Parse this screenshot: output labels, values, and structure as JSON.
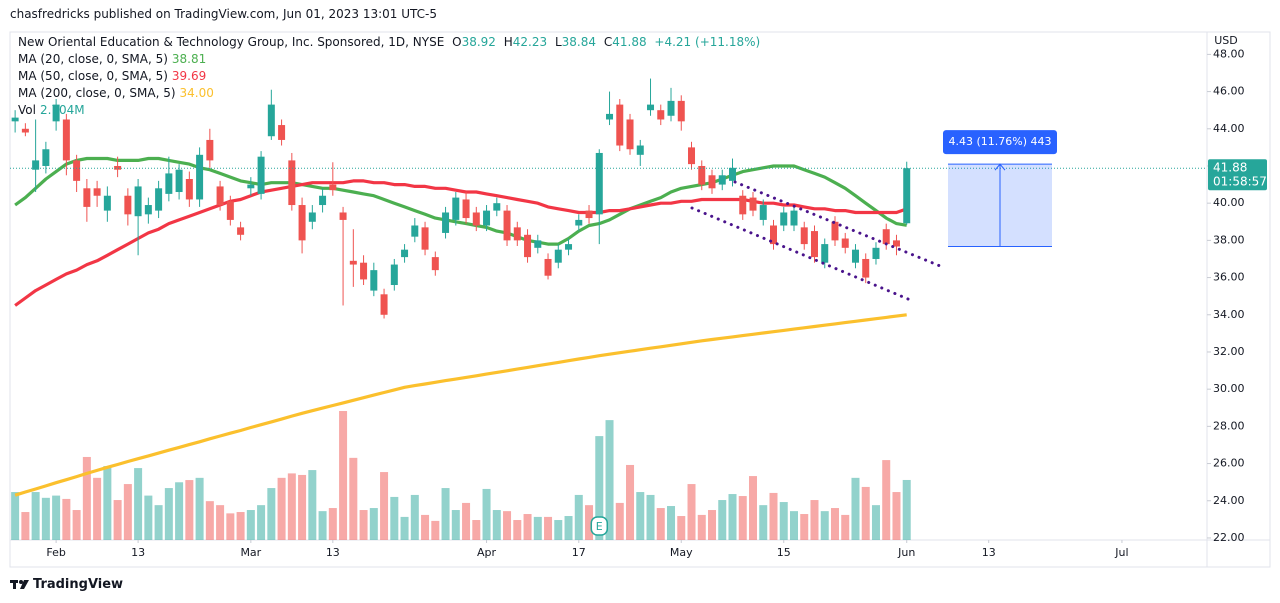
{
  "header": "chasfredricks published on TradingView.com, Jun 01, 2023 13:01 UTC-5",
  "footer": "TradingView",
  "chart_data": {
    "type": "candlestick",
    "title": "New Oriental Education & Technology Group, Inc. Sponsored, 1D, NYSE",
    "ohlc_letters": [
      "O",
      "H",
      "L",
      "C"
    ],
    "change_label": "+4.21 (+11.18%)",
    "currency": "USD",
    "countdown": "01:58:57",
    "up_color": "#26a69a",
    "down_color": "#ef5350",
    "open": [
      44.4,
      44.0,
      41.8,
      42.0,
      44.4,
      44.5,
      42.3,
      40.8,
      40.8,
      39.6,
      42.0,
      40.4,
      39.3,
      39.4,
      39.6,
      40.5,
      40.6,
      41.3,
      40.2,
      43.4,
      40.9,
      40.1,
      38.7,
      40.8,
      40.5,
      43.6,
      44.2,
      42.3,
      39.9,
      39.0,
      39.9,
      41.0,
      39.5,
      36.9,
      36.8,
      35.3,
      35.1,
      35.6,
      37.1,
      38.2,
      38.7,
      37.1,
      38.4,
      39.1,
      40.2,
      39.5,
      38.8,
      39.6,
      39.6,
      38.7,
      38.3,
      37.6,
      37.0,
      36.8,
      37.5,
      38.8,
      39.6,
      39.4,
      44.5,
      45.3,
      44.5,
      42.6,
      45.0,
      45.0,
      44.7,
      45.5,
      43.0,
      42.0,
      41.5,
      41.0,
      41.2,
      40.4,
      40.3,
      39.1,
      38.8,
      38.8,
      38.8,
      38.7,
      38.5,
      36.8,
      39.0,
      38.1,
      36.8,
      37.0,
      37.0,
      38.6,
      38.0,
      38.92
    ],
    "high": [
      45.0,
      44.3,
      44.5,
      43.3,
      45.6,
      44.8,
      42.6,
      41.3,
      41.2,
      40.9,
      42.5,
      40.8,
      41.3,
      40.3,
      41.2,
      42.5,
      42.1,
      41.7,
      43.0,
      44.0,
      41.2,
      40.4,
      39.0,
      41.4,
      42.8,
      46.1,
      44.5,
      42.7,
      40.3,
      39.9,
      40.8,
      42.2,
      39.8,
      38.6,
      37.2,
      36.8,
      35.4,
      37.0,
      37.8,
      39.2,
      39.0,
      37.4,
      39.8,
      40.6,
      40.6,
      39.8,
      39.9,
      40.3,
      39.9,
      39.0,
      38.6,
      38.3,
      37.3,
      37.8,
      38.1,
      39.4,
      39.9,
      42.9,
      46.0,
      45.6,
      44.8,
      43.4,
      46.7,
      45.3,
      46.2,
      45.8,
      43.3,
      42.3,
      41.8,
      41.8,
      42.4,
      40.7,
      40.6,
      40.2,
      39.1,
      39.8,
      39.9,
      39.0,
      38.8,
      38.1,
      39.3,
      38.4,
      37.8,
      37.3,
      37.9,
      38.9,
      38.3,
      42.23
    ],
    "low": [
      43.8,
      43.6,
      40.6,
      41.6,
      43.9,
      41.5,
      40.6,
      39.0,
      39.8,
      39.0,
      41.4,
      38.8,
      37.2,
      38.9,
      39.2,
      40.1,
      40.2,
      39.8,
      39.8,
      41.9,
      39.6,
      38.8,
      38.0,
      40.4,
      40.2,
      43.4,
      43.1,
      39.6,
      37.3,
      38.6,
      39.5,
      40.4,
      34.5,
      35.5,
      35.6,
      35.0,
      33.8,
      35.3,
      36.8,
      37.9,
      37.2,
      36.1,
      38.1,
      38.8,
      38.9,
      38.5,
      38.5,
      39.3,
      37.7,
      37.7,
      36.8,
      37.3,
      35.9,
      36.5,
      37.2,
      38.5,
      38.9,
      37.8,
      44.2,
      42.8,
      42.6,
      42.0,
      44.7,
      44.2,
      44.4,
      43.9,
      41.8,
      40.7,
      40.5,
      40.7,
      40.9,
      39.1,
      39.3,
      38.8,
      37.5,
      38.5,
      38.5,
      37.5,
      36.8,
      36.5,
      37.7,
      37.3,
      36.5,
      35.7,
      36.7,
      37.5,
      37.2,
      38.84
    ],
    "close": [
      44.6,
      43.8,
      42.3,
      42.9,
      45.3,
      42.3,
      41.2,
      39.8,
      40.4,
      40.4,
      41.8,
      39.4,
      40.9,
      39.9,
      40.8,
      41.6,
      41.8,
      40.2,
      42.6,
      42.3,
      39.9,
      39.1,
      38.3,
      41.0,
      42.5,
      45.3,
      43.4,
      39.9,
      38.0,
      39.5,
      40.4,
      40.7,
      39.1,
      36.7,
      35.9,
      36.4,
      34.0,
      36.7,
      37.5,
      38.8,
      37.5,
      36.4,
      39.5,
      40.3,
      39.2,
      38.8,
      39.6,
      40.0,
      38.0,
      38.0,
      37.1,
      38.0,
      36.1,
      37.5,
      37.8,
      39.1,
      39.2,
      42.7,
      44.8,
      43.1,
      42.9,
      43.1,
      45.3,
      44.5,
      45.5,
      44.4,
      42.1,
      41.0,
      40.8,
      41.5,
      41.9,
      39.4,
      39.6,
      39.9,
      37.8,
      39.5,
      39.6,
      37.8,
      37.1,
      37.8,
      38.0,
      37.6,
      37.5,
      36.0,
      37.6,
      37.8,
      37.67,
      41.88
    ],
    "volume_name": "Vol",
    "volume_last_label": "2.704M",
    "volume": [
      2.16,
      1.26,
      2.16,
      1.9,
      2.0,
      1.85,
      1.35,
      3.74,
      2.8,
      3.33,
      1.8,
      2.52,
      3.24,
      2.0,
      1.57,
      2.34,
      2.6,
      2.7,
      2.8,
      1.75,
      1.57,
      1.2,
      1.26,
      1.35,
      1.57,
      2.34,
      2.8,
      3.0,
      2.93,
      3.15,
      1.3,
      1.44,
      5.81,
      3.7,
      1.35,
      1.44,
      3.06,
      1.94,
      1.04,
      2.03,
      1.13,
      0.86,
      2.34,
      1.35,
      1.67,
      0.9,
      2.3,
      1.35,
      1.3,
      0.9,
      1.17,
      1.04,
      1.04,
      0.9,
      1.08,
      2.03,
      1.57,
      4.68,
      5.4,
      1.67,
      3.38,
      2.16,
      2.03,
      1.44,
      1.53,
      1.08,
      2.52,
      1.13,
      1.35,
      1.8,
      2.07,
      1.98,
      2.88,
      1.57,
      2.12,
      1.71,
      1.3,
      1.17,
      1.8,
      1.3,
      1.44,
      1.13,
      2.8,
      2.39,
      1.57,
      3.6,
      2.16,
      2.704
    ],
    "series": [
      {
        "name": "MA (20, close, 0, SMA, 5)",
        "color": "#4caf50",
        "last_label": "38.81",
        "values": [
          39.9,
          40.3,
          40.8,
          41.3,
          41.7,
          42.1,
          42.3,
          42.4,
          42.4,
          42.4,
          42.3,
          42.3,
          42.3,
          42.4,
          42.4,
          42.3,
          42.2,
          42.1,
          41.9,
          41.8,
          41.6,
          41.4,
          41.2,
          41.1,
          41.0,
          41.1,
          41.1,
          41.1,
          41.0,
          40.9,
          40.8,
          40.8,
          40.7,
          40.6,
          40.5,
          40.4,
          40.2,
          40.0,
          39.8,
          39.6,
          39.4,
          39.2,
          39.1,
          39.0,
          38.9,
          38.8,
          38.7,
          38.5,
          38.4,
          38.2,
          38.0,
          37.9,
          37.8,
          37.8,
          38.1,
          38.5,
          38.8,
          38.9,
          39.1,
          39.4,
          39.7,
          39.9,
          40.1,
          40.3,
          40.6,
          40.8,
          40.9,
          41.0,
          41.1,
          41.3,
          41.5,
          41.7,
          41.8,
          41.9,
          42.0,
          42.0,
          42.0,
          41.8,
          41.6,
          41.4,
          41.1,
          40.8,
          40.4,
          40.0,
          39.6,
          39.2,
          38.9,
          38.81
        ]
      },
      {
        "name": "MA (50, close, 0, SMA, 5)",
        "color": "#f23645",
        "last_label": "39.69",
        "values": [
          34.5,
          34.9,
          35.3,
          35.6,
          35.9,
          36.2,
          36.4,
          36.7,
          36.9,
          37.2,
          37.5,
          37.8,
          38.1,
          38.4,
          38.6,
          38.9,
          39.1,
          39.3,
          39.5,
          39.7,
          39.9,
          40.1,
          40.2,
          40.4,
          40.6,
          40.7,
          40.8,
          40.9,
          41.0,
          41.1,
          41.1,
          41.1,
          41.1,
          41.2,
          41.2,
          41.1,
          41.1,
          41.0,
          41.0,
          40.9,
          40.9,
          40.8,
          40.8,
          40.7,
          40.6,
          40.6,
          40.5,
          40.4,
          40.3,
          40.2,
          40.1,
          40.0,
          39.8,
          39.7,
          39.6,
          39.5,
          39.5,
          39.5,
          39.6,
          39.6,
          39.7,
          39.8,
          39.9,
          40.0,
          40.0,
          40.1,
          40.1,
          40.2,
          40.2,
          40.2,
          40.2,
          40.2,
          40.1,
          40.0,
          40.0,
          39.9,
          39.9,
          39.8,
          39.7,
          39.7,
          39.6,
          39.6,
          39.5,
          39.5,
          39.5,
          39.5,
          39.5,
          39.69
        ]
      },
      {
        "name": "MA (200, close, 0, SMA, 5)",
        "color": "#fbc02d",
        "last_label": "34.00",
        "values": [
          24.3,
          24.47,
          24.63,
          24.8,
          24.97,
          25.13,
          25.3,
          25.47,
          25.63,
          25.8,
          25.95,
          26.11,
          26.26,
          26.41,
          26.56,
          26.72,
          26.87,
          27.02,
          27.17,
          27.33,
          27.48,
          27.63,
          27.78,
          27.94,
          28.09,
          28.24,
          28.39,
          28.55,
          28.7,
          28.84,
          28.98,
          29.12,
          29.26,
          29.4,
          29.54,
          29.68,
          29.82,
          29.96,
          30.1,
          30.19,
          30.28,
          30.37,
          30.46,
          30.54,
          30.63,
          30.72,
          30.81,
          30.9,
          30.99,
          31.08,
          31.17,
          31.26,
          31.35,
          31.44,
          31.53,
          31.62,
          31.71,
          31.8,
          31.88,
          31.96,
          32.04,
          32.12,
          32.2,
          32.28,
          32.36,
          32.44,
          32.52,
          32.6,
          32.67,
          32.74,
          32.81,
          32.88,
          32.95,
          33.02,
          33.09,
          33.16,
          33.23,
          33.3,
          33.37,
          33.44,
          33.51,
          33.58,
          33.65,
          33.72,
          33.79,
          33.86,
          33.93,
          34.0
        ]
      }
    ],
    "measure": {
      "label": "4.43 (11.76%) 443",
      "from": 37.67,
      "to": 42.1,
      "color": "#2962ff"
    },
    "earnings": {
      "bar": 57,
      "label": "E"
    },
    "xlim": [
      -0.5,
      116.3
    ],
    "xticks": [
      {
        "value": 4,
        "label": "Feb"
      },
      {
        "value": 12,
        "label": "13"
      },
      {
        "value": 23,
        "label": "Mar"
      },
      {
        "value": 31,
        "label": "13"
      },
      {
        "value": 46,
        "label": "Apr"
      },
      {
        "value": 55,
        "label": "17"
      },
      {
        "value": 65,
        "label": "May"
      },
      {
        "value": 75,
        "label": "15"
      },
      {
        "value": 87,
        "label": "Jun"
      },
      {
        "value": 95,
        "label": "13"
      },
      {
        "value": 108,
        "label": "Jul"
      }
    ],
    "ylim": [
      21.89,
      49.15
    ],
    "yticks": [
      {
        "value": 22,
        "label": "22.00"
      },
      {
        "value": 24,
        "label": "24.00"
      },
      {
        "value": 26,
        "label": "26.00"
      },
      {
        "value": 28,
        "label": "28.00"
      },
      {
        "value": 30,
        "label": "30.00"
      },
      {
        "value": 32,
        "label": "32.00"
      },
      {
        "value": 34,
        "label": "34.00"
      },
      {
        "value": 36,
        "label": "36.00"
      },
      {
        "value": 38,
        "label": "38.00"
      },
      {
        "value": 40,
        "label": "40.00"
      },
      {
        "value": 42,
        "label": "42.00"
      },
      {
        "value": 44,
        "label": "44.00"
      },
      {
        "value": 46,
        "label": "46.00"
      },
      {
        "value": 48,
        "label": "48.00"
      }
    ],
    "grid": false
  }
}
